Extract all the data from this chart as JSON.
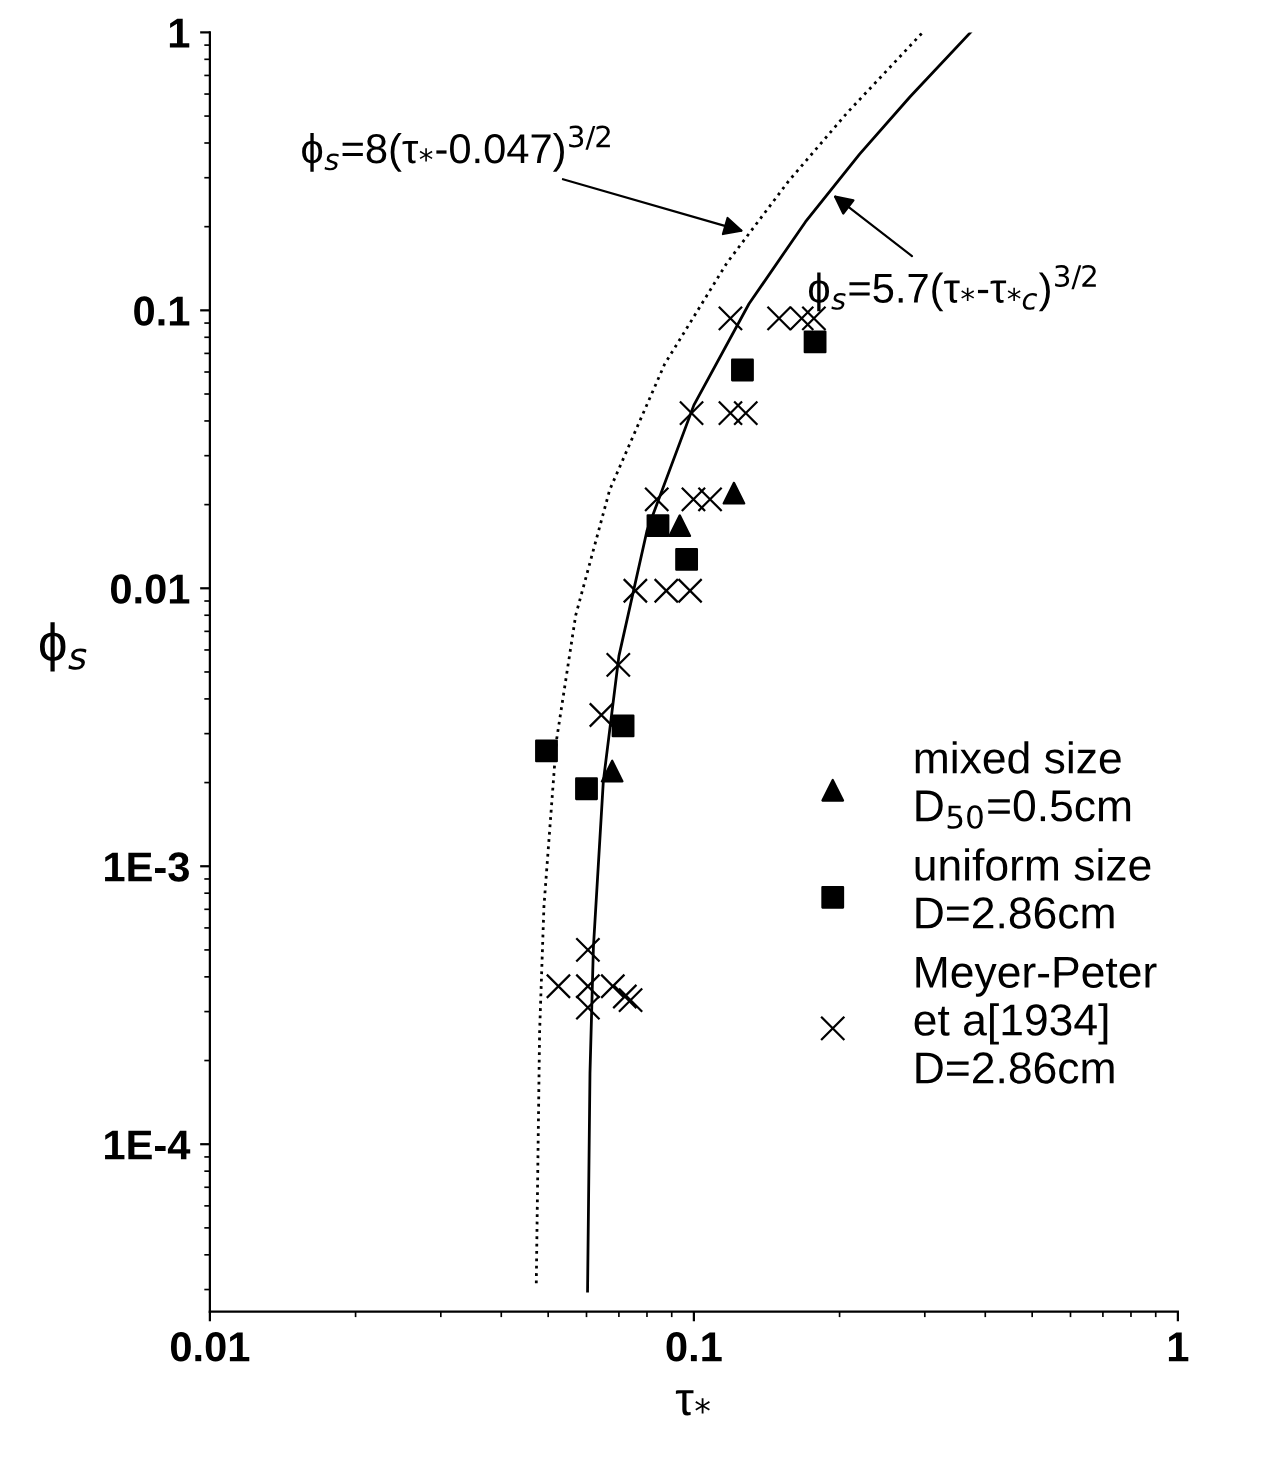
{
  "chart_data": {
    "type": "scatter",
    "xlabel": "τ$_{*}$",
    "ylabel": "ϕ$_{s}$",
    "log": "xy",
    "xlim": [
      0.01,
      1
    ],
    "ylim": [
      2.5e-05,
      1
    ],
    "xticks": [
      0.01,
      0.1,
      1
    ],
    "yticks": [
      {
        "value": 0.0001,
        "label": "1E-4"
      },
      {
        "value": 0.001,
        "label": "1E-3"
      },
      0.01,
      0.1,
      1
    ],
    "grid": false,
    "legend": "bottom right",
    "series": [
      {
        "type": "line",
        "color": "#000000",
        "line_style": "dotted",
        "marker": "none",
        "x": [
          0.04725,
          0.048,
          0.049,
          0.052,
          0.057,
          0.067,
          0.087,
          0.117,
          0.157,
          0.207,
          0.297
        ],
        "values": [
          3.16e-05,
          0.000253,
          0.000716,
          0.00283,
          0.008,
          0.0226,
          0.064,
          0.148,
          0.292,
          0.512,
          1.0
        ]
      },
      {
        "type": "line",
        "color": "#000000",
        "line_style": "solid",
        "marker": "none",
        "x": [
          0.0603,
          0.061,
          0.062,
          0.065,
          0.07,
          0.08,
          0.1,
          0.13,
          0.17,
          0.22,
          0.28,
          0.373
        ],
        "values": [
          2.96e-05,
          0.00018,
          0.00051,
          0.00202,
          0.0057,
          0.0161,
          0.0456,
          0.1056,
          0.208,
          0.365,
          0.588,
          1.0
        ]
      },
      {
        "name": "mixed size\nD$_{50}$=0.5cm",
        "color": "#000000",
        "marker": "triangle",
        "x": [
          0.121,
          0.0935,
          0.0678
        ],
        "values": [
          0.022,
          0.0168,
          0.0022
        ]
      },
      {
        "name": "uniform size\nD=2.86cm",
        "color": "#000000",
        "marker": "square",
        "x": [
          0.178,
          0.126,
          0.0843,
          0.0966,
          0.0714,
          0.0496,
          0.06
        ],
        "values": [
          0.077,
          0.061,
          0.0168,
          0.0127,
          0.0032,
          0.0026,
          0.0019
        ]
      },
      {
        "name": "Meyer-Peter\net a[1934]\nD=2.86cm",
        "color": "#000000",
        "marker": "cross",
        "x": [
          0.119,
          0.15,
          0.167,
          0.177,
          0.0989,
          0.119,
          0.128,
          0.0838,
          0.0998,
          0.108,
          0.0757,
          0.0877,
          0.0982,
          0.0698,
          0.0644,
          0.0604,
          0.0525,
          0.0604,
          0.0604,
          0.068,
          0.072,
          0.074
        ],
        "values": [
          0.0935,
          0.0935,
          0.0935,
          0.0935,
          0.0427,
          0.0427,
          0.0427,
          0.0209,
          0.0209,
          0.0209,
          0.0098,
          0.0098,
          0.0098,
          0.0053,
          0.0035,
          0.0005,
          0.00037,
          0.00037,
          0.00031,
          0.00037,
          0.00034,
          0.00033
        ]
      }
    ],
    "annotations": [
      {
        "text": "ϕ$_{s}$=8(τ$_{*}$-0.047)$^{3/2}$",
        "x": 0.13,
        "y": 0.19
      },
      {
        "text": "ϕ$_{s}$=5.7(τ$_{*}$-τ$_{*c}$)$^{3/2}$",
        "x": 0.19,
        "y": 0.267
      }
    ]
  }
}
